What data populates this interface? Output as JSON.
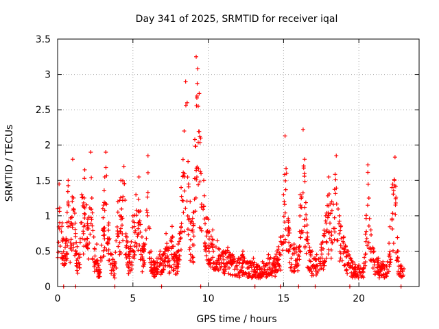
{
  "chart_data": {
    "type": "scatter",
    "title": "Day 341 of 2025, SRMTID for receiver iqal",
    "xlabel": "GPS time / hours",
    "ylabel": "SRMTID / TECUs",
    "xlim": [
      0,
      24
    ],
    "ylim": [
      0,
      3.5
    ],
    "x_ticks": [
      0,
      5,
      10,
      15,
      20
    ],
    "x_tick_labels": [
      "0",
      "5",
      "10",
      "15",
      "20"
    ],
    "y_ticks": [
      0,
      0.5,
      1,
      1.5,
      2,
      2.5,
      3,
      3.5
    ],
    "y_tick_labels": [
      "0",
      "0.5",
      "1",
      "1.5",
      "2",
      "2.5",
      "3",
      "3.5"
    ],
    "grid": true,
    "marker": "+",
    "series": [
      {
        "name": "SRMTID",
        "color": "#ff0000",
        "envelope_points": [
          [
            0.0,
            1.1
          ],
          [
            0.1,
            1.45
          ],
          [
            0.3,
            0.9
          ],
          [
            0.5,
            0.55
          ],
          [
            0.7,
            1.5
          ],
          [
            0.9,
            0.9
          ],
          [
            1.0,
            1.8
          ],
          [
            1.2,
            0.75
          ],
          [
            1.4,
            0.45
          ],
          [
            1.6,
            1.3
          ],
          [
            1.8,
            1.65
          ],
          [
            2.0,
            0.95
          ],
          [
            2.2,
            1.9
          ],
          [
            2.4,
            0.7
          ],
          [
            2.6,
            0.6
          ],
          [
            2.8,
            0.2
          ],
          [
            3.0,
            1.1
          ],
          [
            3.2,
            1.9
          ],
          [
            3.4,
            0.9
          ],
          [
            3.6,
            0.45
          ],
          [
            3.8,
            0.35
          ],
          [
            4.0,
            1.2
          ],
          [
            4.2,
            1.5
          ],
          [
            4.4,
            1.7
          ],
          [
            4.6,
            0.7
          ],
          [
            4.8,
            0.5
          ],
          [
            5.0,
            1.0
          ],
          [
            5.2,
            1.3
          ],
          [
            5.4,
            1.55
          ],
          [
            5.6,
            0.7
          ],
          [
            5.8,
            0.6
          ],
          [
            6.0,
            1.85
          ],
          [
            6.2,
            0.5
          ],
          [
            6.4,
            0.35
          ],
          [
            6.6,
            0.4
          ],
          [
            6.8,
            0.5
          ],
          [
            7.0,
            0.45
          ],
          [
            7.2,
            0.75
          ],
          [
            7.4,
            0.55
          ],
          [
            7.6,
            0.85
          ],
          [
            7.8,
            0.45
          ],
          [
            8.0,
            0.6
          ],
          [
            8.2,
            1.4
          ],
          [
            8.4,
            2.2
          ],
          [
            8.5,
            2.9
          ],
          [
            8.6,
            2.6
          ],
          [
            8.8,
            1.2
          ],
          [
            9.0,
            1.05
          ],
          [
            9.2,
            3.25
          ],
          [
            9.3,
            3.08
          ],
          [
            9.4,
            2.73
          ],
          [
            9.5,
            2.1
          ],
          [
            9.7,
            1.5
          ],
          [
            10.0,
            0.95
          ],
          [
            10.3,
            0.8
          ],
          [
            10.6,
            0.65
          ],
          [
            11.0,
            0.5
          ],
          [
            11.3,
            0.55
          ],
          [
            11.6,
            0.45
          ],
          [
            12.0,
            0.4
          ],
          [
            12.3,
            0.5
          ],
          [
            12.6,
            0.35
          ],
          [
            13.0,
            0.4
          ],
          [
            13.3,
            0.3
          ],
          [
            13.6,
            0.35
          ],
          [
            14.0,
            0.45
          ],
          [
            14.4,
            0.4
          ],
          [
            14.8,
            0.7
          ],
          [
            15.0,
            1.3
          ],
          [
            15.1,
            2.13
          ],
          [
            15.2,
            1.6
          ],
          [
            15.4,
            0.8
          ],
          [
            15.7,
            0.6
          ],
          [
            16.0,
            0.55
          ],
          [
            16.1,
            1.3
          ],
          [
            16.3,
            2.22
          ],
          [
            16.4,
            1.8
          ],
          [
            16.6,
            0.7
          ],
          [
            16.9,
            0.5
          ],
          [
            17.2,
            0.45
          ],
          [
            17.5,
            0.6
          ],
          [
            17.8,
            1.0
          ],
          [
            18.0,
            1.55
          ],
          [
            18.2,
            1.2
          ],
          [
            18.5,
            1.85
          ],
          [
            18.7,
            1.0
          ],
          [
            19.0,
            0.7
          ],
          [
            19.3,
            0.5
          ],
          [
            19.6,
            0.35
          ],
          [
            20.0,
            0.3
          ],
          [
            20.3,
            0.25
          ],
          [
            20.6,
            1.72
          ],
          [
            20.8,
            0.8
          ],
          [
            21.0,
            0.5
          ],
          [
            21.3,
            0.4
          ],
          [
            21.6,
            0.35
          ],
          [
            21.9,
            0.35
          ],
          [
            22.2,
            1.4
          ],
          [
            22.4,
            1.83
          ],
          [
            22.6,
            0.5
          ],
          [
            22.8,
            0.3
          ],
          [
            23.0,
            0.25
          ]
        ],
        "zero_points_x": [
          0.4,
          1.2,
          3.8,
          6.9,
          9.5,
          13.1,
          14.8,
          16.0,
          17.1,
          19.4,
          22.8
        ]
      }
    ]
  }
}
